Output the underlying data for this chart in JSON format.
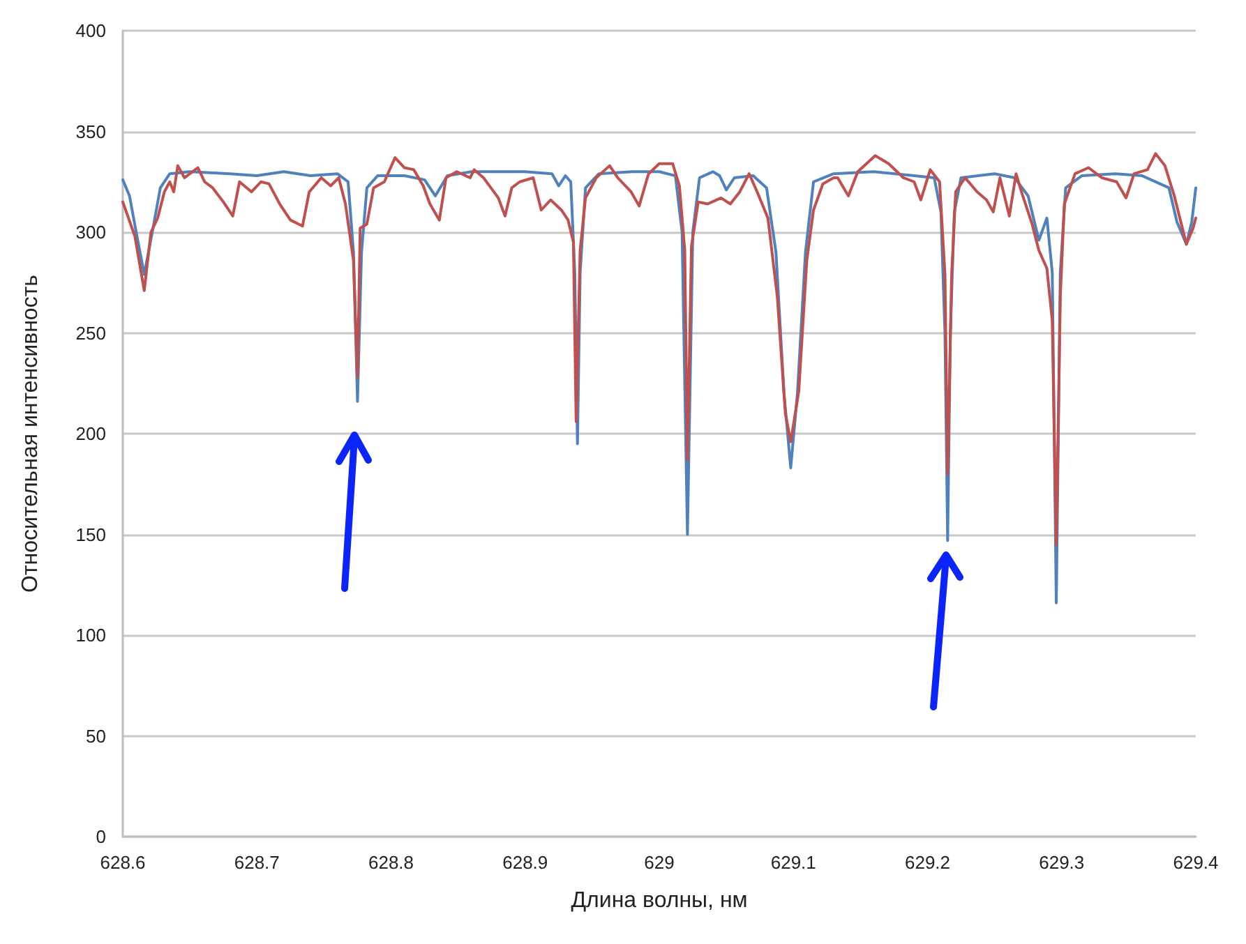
{
  "chart_data": {
    "type": "line",
    "xlabel": "Длина волны, нм",
    "ylabel": "Относительная интенсивность",
    "xlim": [
      628.6,
      629.4
    ],
    "xticks": [
      628.6,
      628.7,
      628.8,
      628.9,
      629,
      629.1,
      629.2,
      629.3,
      629.4
    ],
    "ylim": [
      0,
      400
    ],
    "yticks": [
      0,
      50,
      100,
      150,
      200,
      250,
      300,
      350,
      400
    ],
    "grid": "y",
    "marker": "none",
    "line_style": "solid",
    "series": [
      {
        "color": "#4f81bd",
        "x": [
          628.6,
          628.605,
          628.61,
          628.616,
          628.622,
          628.628,
          628.635,
          628.65,
          628.68,
          628.7,
          628.72,
          628.74,
          628.76,
          628.768,
          628.772,
          628.775,
          628.778,
          628.782,
          628.79,
          628.81,
          628.825,
          628.833,
          628.842,
          628.86,
          628.9,
          628.92,
          628.925,
          628.93,
          628.934,
          628.937,
          628.939,
          628.941,
          628.945,
          628.955,
          628.98,
          629.0,
          629.012,
          629.017,
          629.021,
          629.025,
          629.03,
          629.04,
          629.045,
          629.05,
          629.056,
          629.07,
          629.08,
          629.087,
          629.093,
          629.098,
          629.103,
          629.109,
          629.115,
          629.13,
          629.16,
          629.19,
          629.205,
          629.21,
          629.213,
          629.215,
          629.217,
          629.22,
          629.225,
          629.25,
          629.265,
          629.275,
          629.283,
          629.289,
          629.293,
          629.296,
          629.299,
          629.303,
          629.315,
          629.34,
          629.36,
          629.38,
          629.386,
          629.393,
          629.397,
          629.4
        ],
        "values": [
          326,
          318,
          300,
          279,
          300,
          322,
          329,
          330,
          329,
          328,
          330,
          328,
          329,
          325,
          290,
          216,
          290,
          322,
          328,
          328,
          326,
          318,
          328,
          330,
          330,
          329,
          323,
          328,
          325,
          280,
          195,
          280,
          322,
          329,
          330,
          330,
          328,
          300,
          150,
          300,
          327,
          330,
          328,
          321,
          327,
          328,
          322,
          290,
          220,
          183,
          220,
          290,
          325,
          329,
          330,
          328,
          327,
          310,
          250,
          147,
          250,
          310,
          327,
          329,
          327,
          318,
          296,
          307,
          280,
          116,
          280,
          322,
          328,
          329,
          328,
          322,
          305,
          294,
          305,
          322
        ]
      },
      {
        "color": "#c0504d",
        "x": [
          628.6,
          628.609,
          628.616,
          628.621,
          628.626,
          628.631,
          628.635,
          628.638,
          628.641,
          628.646,
          628.656,
          628.661,
          628.667,
          628.675,
          628.682,
          628.687,
          628.696,
          628.703,
          628.709,
          628.717,
          628.725,
          628.734,
          628.739,
          628.748,
          628.755,
          628.761,
          628.766,
          628.772,
          628.775,
          628.777,
          628.782,
          628.787,
          628.795,
          628.803,
          628.81,
          628.817,
          628.824,
          628.829,
          628.836,
          628.841,
          628.849,
          628.859,
          628.862,
          628.869,
          628.88,
          628.885,
          628.89,
          628.896,
          628.906,
          628.912,
          628.919,
          628.927,
          628.932,
          628.936,
          628.938,
          628.941,
          628.945,
          628.953,
          628.963,
          628.969,
          628.979,
          628.985,
          628.992,
          629.0,
          629.01,
          629.015,
          629.019,
          629.021,
          629.024,
          629.029,
          629.036,
          629.046,
          629.053,
          629.06,
          629.067,
          629.073,
          629.081,
          629.088,
          629.094,
          629.098,
          629.104,
          629.11,
          629.115,
          629.122,
          629.13,
          629.133,
          629.141,
          629.148,
          629.161,
          629.171,
          629.182,
          629.19,
          629.195,
          629.202,
          629.209,
          629.213,
          629.215,
          629.218,
          629.221,
          629.228,
          629.237,
          629.244,
          629.249,
          629.254,
          629.261,
          629.266,
          629.271,
          629.278,
          629.283,
          629.289,
          629.293,
          629.296,
          629.299,
          629.302,
          629.31,
          629.32,
          629.33,
          629.341,
          629.348,
          629.354,
          629.364,
          629.37,
          629.377,
          629.384,
          629.393,
          629.398,
          629.4
        ],
        "values": [
          315,
          298,
          271,
          300,
          307,
          320,
          325,
          320,
          333,
          327,
          332,
          325,
          322,
          315,
          308,
          325,
          320,
          325,
          324,
          314,
          306,
          303,
          320,
          327,
          323,
          327,
          314,
          286,
          228,
          302,
          304,
          322,
          325,
          337,
          332,
          331,
          323,
          314,
          306,
          327,
          330,
          327,
          331,
          327,
          317,
          308,
          322,
          325,
          327,
          311,
          316,
          311,
          306,
          295,
          206,
          291,
          317,
          327,
          333,
          327,
          320,
          313,
          329,
          334,
          334,
          323,
          291,
          187,
          293,
          315,
          314,
          317,
          314,
          320,
          329,
          320,
          307,
          268,
          210,
          196,
          221,
          286,
          311,
          324,
          327,
          327,
          318,
          330,
          338,
          334,
          327,
          325,
          316,
          331,
          325,
          279,
          180,
          279,
          320,
          327,
          320,
          316,
          310,
          327,
          308,
          329,
          318,
          304,
          291,
          282,
          256,
          145,
          268,
          314,
          329,
          332,
          327,
          325,
          317,
          329,
          331,
          339,
          333,
          318,
          294,
          302,
          307
        ]
      }
    ]
  }
}
